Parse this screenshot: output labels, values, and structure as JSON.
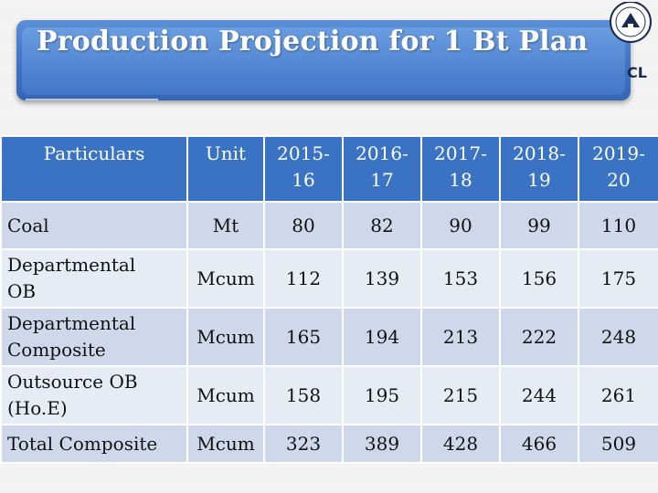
{
  "slide": {
    "title": "Production Projection for 1 Bt Plan",
    "logo_text": "CL"
  },
  "table": {
    "headers": [
      "Particulars",
      "Unit",
      "2015-16",
      "2016-17",
      "2017-18",
      "2018-19",
      "2019-20"
    ],
    "header_lines": [
      [
        "Particulars"
      ],
      [
        "Unit"
      ],
      [
        "2015-",
        "16"
      ],
      [
        "2016-",
        "17"
      ],
      [
        "2017-",
        "18"
      ],
      [
        "2018-",
        "19"
      ],
      [
        "2019-",
        "20"
      ]
    ],
    "rows": [
      {
        "particular": [
          "Coal"
        ],
        "unit": "Mt",
        "values": [
          "80",
          "82",
          "90",
          "99",
          "110"
        ]
      },
      {
        "particular": [
          "Departmental",
          "OB"
        ],
        "unit": "Mcum",
        "values": [
          "112",
          "139",
          "153",
          "156",
          "175"
        ]
      },
      {
        "particular": [
          "Departmental",
          "Composite"
        ],
        "unit": "Mcum",
        "values": [
          "165",
          "194",
          "213",
          "222",
          "248"
        ]
      },
      {
        "particular": [
          "Outsource OB",
          "(Ho.E)"
        ],
        "unit": "Mcum",
        "values": [
          "158",
          "195",
          "215",
          "244",
          "261"
        ]
      },
      {
        "particular": [
          "Total Composite"
        ],
        "unit": "Mcum",
        "values": [
          "323",
          "389",
          "428",
          "466",
          "509"
        ]
      }
    ]
  },
  "colors": {
    "title_blue": "#3f74c4",
    "header_blue": "#3a73c4",
    "row_shade_a": "#cfd8ea",
    "row_shade_b": "#e6ebf4"
  }
}
